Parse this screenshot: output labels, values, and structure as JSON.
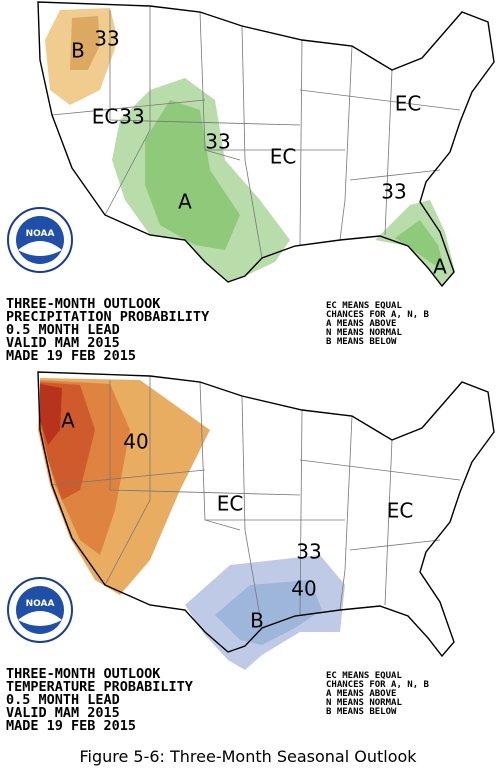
{
  "maps": [
    {
      "title_lines": [
        "THREE-MONTH OUTLOOK",
        "PRECIPITATION PROBABILITY",
        "0.5 MONTH LEAD",
        "VALID MAM 2015",
        "MADE 19 FEB 2015"
      ],
      "legend_lines": [
        "EC MEANS EQUAL",
        "CHANCES FOR A, N, B",
        "A MEANS ABOVE",
        "N MEANS NORMAL",
        "B MEANS BELOW"
      ],
      "region_labels": [
        "B",
        "33",
        "EC",
        "33",
        "33",
        "EC",
        "EC",
        "A",
        "33",
        "A"
      ],
      "logo": "NOAA"
    },
    {
      "title_lines": [
        "THREE-MONTH OUTLOOK",
        "TEMPERATURE PROBABILITY",
        "0.5 MONTH LEAD",
        "VALID MAM 2015",
        "MADE 19 FEB 2015"
      ],
      "legend_lines": [
        "EC MEANS EQUAL",
        "CHANCES FOR A, N, B",
        "A MEANS ABOVE",
        "N MEANS NORMAL",
        "B MEANS BELOW"
      ],
      "region_labels": [
        "A",
        "40",
        "EC",
        "EC",
        "33",
        "40",
        "B"
      ],
      "logo": "NOAA"
    }
  ],
  "caption": "Figure 5-6: Three-Month Seasonal Outlook"
}
